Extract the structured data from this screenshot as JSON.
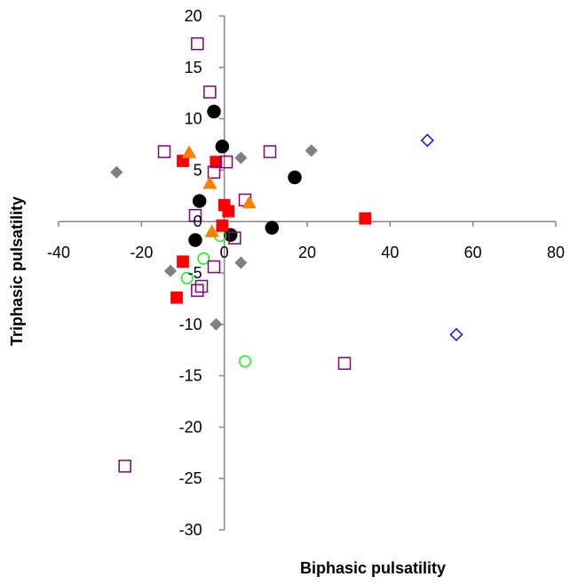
{
  "chart_data": {
    "type": "scatter",
    "xlabel": "Biphasic pulsatility",
    "ylabel": "Triphasic pulsatility",
    "xlim": [
      -40,
      80
    ],
    "ylim": [
      -30,
      20
    ],
    "x_ticks": [
      -40,
      -20,
      0,
      20,
      40,
      60,
      80
    ],
    "y_ticks": [
      20,
      15,
      10,
      5,
      0,
      -5,
      -10,
      -15,
      -20,
      -25,
      -30
    ],
    "x_tick_labels": [
      "-40",
      "-20",
      "0",
      "20",
      "40",
      "60",
      "80"
    ],
    "y_tick_labels": [
      "20",
      "15",
      "10",
      "5",
      "0",
      "-5",
      "-10",
      "-15",
      "-20",
      "-25",
      "-30"
    ],
    "axes_cross_at_zero": true,
    "grid": false,
    "legend": "none",
    "series": [
      {
        "marker": "diamond-filled",
        "color": "#808080",
        "points": [
          [
            -26,
            4.8
          ],
          [
            -13,
            -4.8
          ],
          [
            -2,
            -10
          ],
          [
            4,
            6.2
          ],
          [
            4,
            -4
          ],
          [
            21,
            6.9
          ]
        ]
      },
      {
        "marker": "diamond-open",
        "color": "#0000ff",
        "points": [
          [
            49,
            7.9
          ],
          [
            56,
            -11
          ]
        ]
      },
      {
        "marker": "circle-filled",
        "color": "#000000",
        "points": [
          [
            -2.5,
            10.7
          ],
          [
            -0.5,
            7.3
          ],
          [
            -6,
            2
          ],
          [
            17,
            4.3
          ],
          [
            -7,
            -1.8
          ],
          [
            1.5,
            -1.3
          ],
          [
            11.5,
            -0.6
          ]
        ]
      },
      {
        "marker": "circle-open",
        "color": "#00ff00",
        "points": [
          [
            -1,
            -1.4
          ],
          [
            -5,
            -3.6
          ],
          [
            -9,
            -5.5
          ],
          [
            5,
            -13.6
          ]
        ]
      },
      {
        "marker": "square-filled",
        "color": "#ff0000",
        "points": [
          [
            -10,
            5.9
          ],
          [
            -2,
            5.8
          ],
          [
            0,
            1.6
          ],
          [
            1,
            1
          ],
          [
            -0.5,
            -0.4
          ],
          [
            -10,
            -3.9
          ],
          [
            -11.5,
            -7.4
          ],
          [
            34,
            0.3
          ]
        ]
      },
      {
        "marker": "square-open",
        "color": "#800080",
        "points": [
          [
            -6.5,
            17.3
          ],
          [
            -3.5,
            12.6
          ],
          [
            -14.5,
            6.8
          ],
          [
            0.5,
            5.8
          ],
          [
            -2.5,
            4.8
          ],
          [
            11,
            6.8
          ],
          [
            5,
            2.1
          ],
          [
            -7,
            0.6
          ],
          [
            2.5,
            -1.6
          ],
          [
            -2.5,
            -4.4
          ],
          [
            -6.5,
            -6.7
          ],
          [
            -5.5,
            -6.3
          ],
          [
            29,
            -13.8
          ],
          [
            -24,
            -23.8
          ]
        ]
      },
      {
        "marker": "triangle-filled",
        "color": "#ff8000",
        "points": [
          [
            -8.5,
            6.7
          ],
          [
            -3.5,
            3.7
          ],
          [
            6,
            1.8
          ],
          [
            -3,
            -1
          ]
        ]
      }
    ]
  }
}
